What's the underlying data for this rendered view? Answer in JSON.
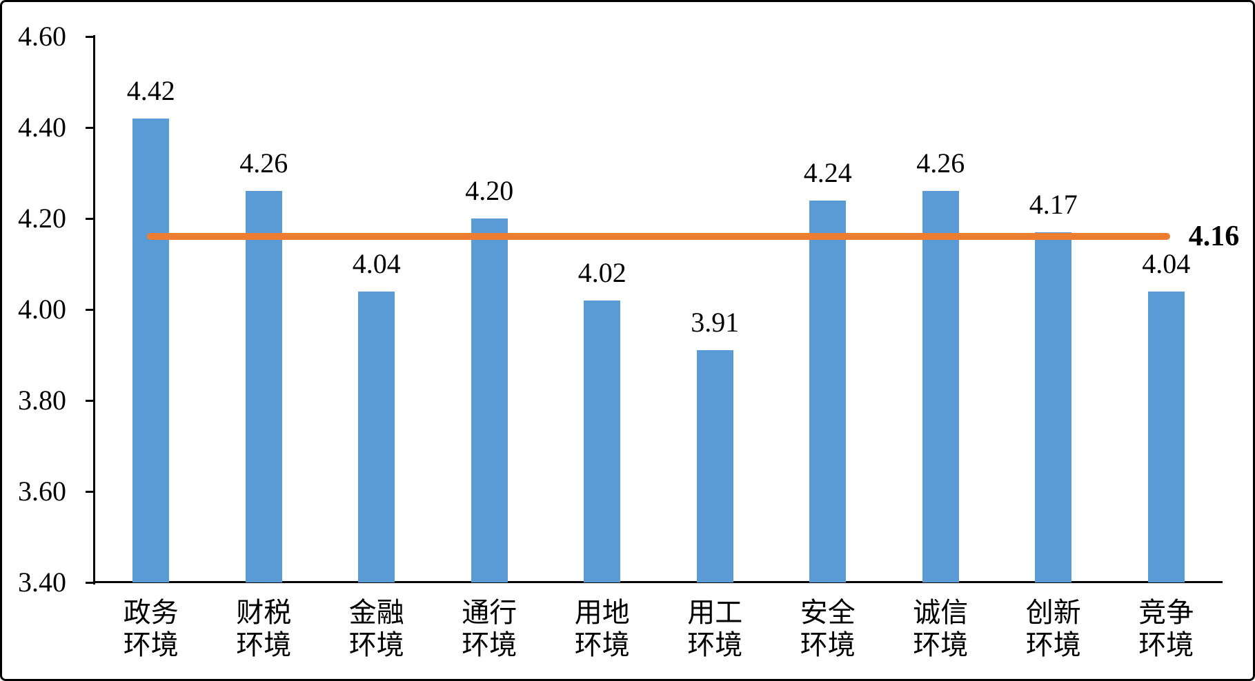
{
  "chart_data": {
    "type": "bar",
    "title": "",
    "categories": [
      [
        "政务",
        "环境"
      ],
      [
        "财税",
        "环境"
      ],
      [
        "金融",
        "环境"
      ],
      [
        "通行",
        "环境"
      ],
      [
        "用地",
        "环境"
      ],
      [
        "用工",
        "环境"
      ],
      [
        "安全",
        "环境"
      ],
      [
        "诚信",
        "环境"
      ],
      [
        "创新",
        "环境"
      ],
      [
        "竞争",
        "环境"
      ]
    ],
    "values": [
      4.42,
      4.26,
      4.04,
      4.2,
      4.02,
      3.91,
      4.24,
      4.26,
      4.17,
      4.04
    ],
    "value_labels": [
      "4.42",
      "4.26",
      "4.04",
      "4.20",
      "4.02",
      "3.91",
      "4.24",
      "4.26",
      "4.17",
      "4.04"
    ],
    "average_line": {
      "value": 4.16,
      "label": "4.16"
    },
    "y_axis": {
      "tick_values": [
        3.4,
        3.6,
        3.8,
        4.0,
        4.2,
        4.4,
        4.6
      ],
      "tick_labels": [
        "3.40",
        "3.60",
        "3.80",
        "4.00",
        "4.20",
        "4.40",
        "4.60"
      ],
      "min": 3.4,
      "max": 4.6
    },
    "ylim": [
      3.4,
      4.6
    ],
    "grid": false,
    "legend": null,
    "colors": {
      "bar": "#5B9BD5",
      "average_line": "#ED7D31",
      "axis": "#000000",
      "text": "#000000"
    }
  }
}
